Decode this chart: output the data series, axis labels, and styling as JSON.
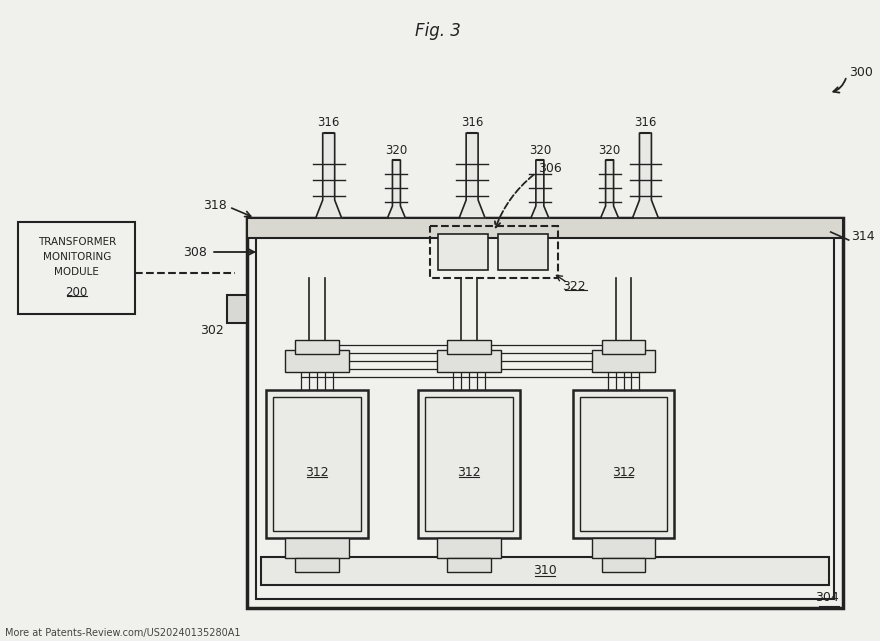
{
  "title": "Fig. 3",
  "bg_color": "#f0f0ec",
  "line_color": "#222222",
  "footer_text": "More at Patents-Review.com/US20240135280A1",
  "ref_300": "300",
  "ref_302": "302",
  "ref_304": "304",
  "ref_306": "306",
  "ref_308": "308",
  "ref_310": "310",
  "ref_312": "312",
  "ref_314": "314",
  "ref_316": "316",
  "ref_318": "318",
  "ref_320": "320",
  "ref_322": "322"
}
